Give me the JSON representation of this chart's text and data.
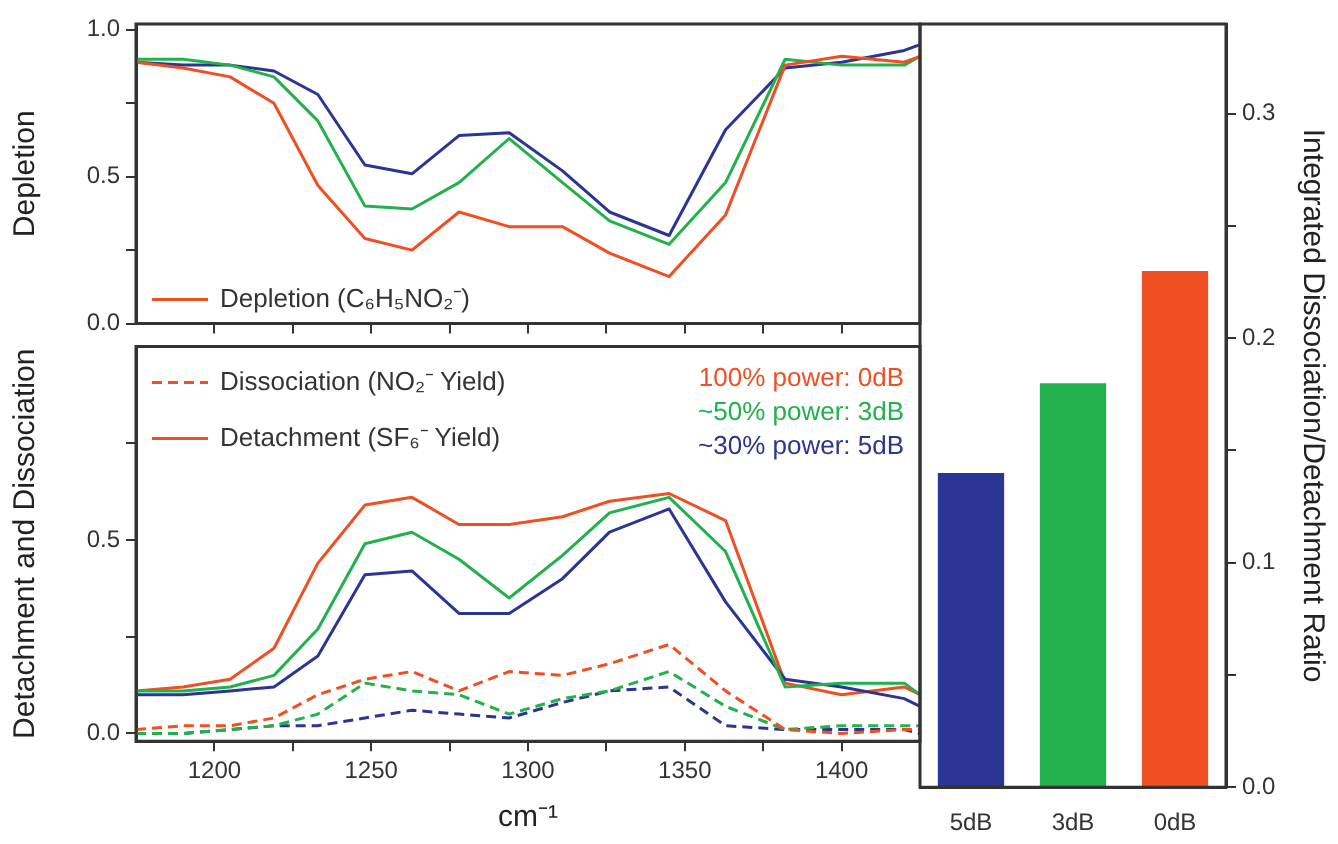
{
  "chart_data": [
    {
      "type": "line",
      "ylabel": "Depletion",
      "x": [
        1175,
        1190,
        1205,
        1219,
        1233,
        1248,
        1263,
        1278,
        1294,
        1311,
        1326,
        1345,
        1363,
        1382,
        1400,
        1420,
        1425
      ],
      "series": [
        {
          "name": "Depletion (C₆H₅NO₂⁻)",
          "color": "#f04e23",
          "values": [
            0.89,
            0.87,
            0.84,
            0.75,
            0.47,
            0.29,
            0.25,
            0.38,
            0.33,
            0.33,
            0.24,
            0.16,
            0.37,
            0.88,
            0.91,
            0.89,
            0.91
          ]
        },
        {
          "color": "#22b14c",
          "values": [
            0.9,
            0.9,
            0.88,
            0.84,
            0.69,
            0.4,
            0.39,
            0.48,
            0.63,
            0.48,
            0.35,
            0.27,
            0.48,
            0.9,
            0.88,
            0.88,
            0.91
          ]
        },
        {
          "color": "#2b3593",
          "values": [
            0.89,
            0.88,
            0.88,
            0.86,
            0.78,
            0.54,
            0.51,
            0.64,
            0.65,
            0.52,
            0.38,
            0.3,
            0.66,
            0.87,
            0.89,
            0.93,
            0.95
          ]
        }
      ],
      "xlim": [
        1175,
        1425
      ],
      "xticks": [
        {
          "value": 1200,
          "label": null
        },
        {
          "value": 1225,
          "label": null
        },
        {
          "value": 1250,
          "label": null
        },
        {
          "value": 1275,
          "label": null
        },
        {
          "value": 1300,
          "label": null
        },
        {
          "value": 1325,
          "label": null
        },
        {
          "value": 1350,
          "label": null
        },
        {
          "value": 1375,
          "label": null
        },
        {
          "value": 1400,
          "label": null
        }
      ],
      "ylim": [
        0,
        1.02
      ],
      "yticks": [
        {
          "value": 0,
          "label": "0.0"
        },
        {
          "value": 0.25,
          "label": null
        },
        {
          "value": 0.5,
          "label": "0.5"
        },
        {
          "value": 0.75,
          "label": null
        },
        {
          "value": 1,
          "label": "1.0"
        }
      ],
      "tick_labels": "y",
      "legend": "bottom left",
      "grid": false,
      "marker": "none",
      "line_style": "solid"
    },
    {
      "type": "line",
      "ylabel": "Detachment and Dissociation",
      "xlabel": "cm⁻¹",
      "x": [
        1175,
        1190,
        1205,
        1219,
        1233,
        1248,
        1263,
        1278,
        1294,
        1311,
        1326,
        1345,
        1363,
        1382,
        1400,
        1420,
        1425
      ],
      "series": [
        {
          "name": "Dissociation (NO₂⁻ Yield)",
          "color": "#f04e23",
          "line_style": "dashed",
          "values": [
            0.01,
            0.02,
            0.02,
            0.04,
            0.1,
            0.14,
            0.16,
            0.11,
            0.16,
            0.15,
            0.18,
            0.23,
            0.11,
            0.01,
            0.0,
            0.01,
            0.01
          ]
        },
        {
          "color": "#22b14c",
          "line_style": "solid",
          "values": [
            0.11,
            0.11,
            0.12,
            0.15,
            0.27,
            0.49,
            0.52,
            0.45,
            0.35,
            0.46,
            0.57,
            0.61,
            0.47,
            0.12,
            0.13,
            0.13,
            0.1
          ]
        },
        {
          "color": "#2b3593",
          "line_style": "solid",
          "values": [
            0.1,
            0.1,
            0.11,
            0.12,
            0.2,
            0.41,
            0.42,
            0.31,
            0.31,
            0.4,
            0.52,
            0.58,
            0.34,
            0.14,
            0.12,
            0.09,
            0.07
          ]
        },
        {
          "name": "Detachment (SF₆⁻ Yield)",
          "color": "#f04e23",
          "line_style": "solid",
          "values": [
            0.11,
            0.12,
            0.14,
            0.22,
            0.44,
            0.59,
            0.61,
            0.54,
            0.54,
            0.56,
            0.6,
            0.62,
            0.55,
            0.13,
            0.1,
            0.12,
            0.1
          ]
        },
        {
          "color": "#22b14c",
          "line_style": "dashed",
          "values": [
            0.0,
            0.0,
            0.01,
            0.02,
            0.05,
            0.13,
            0.11,
            0.1,
            0.05,
            0.09,
            0.11,
            0.16,
            0.07,
            0.01,
            0.02,
            0.02,
            0.02
          ]
        },
        {
          "color": "#2b3593",
          "line_style": "dashed",
          "values": [
            0.0,
            0.0,
            0.01,
            0.02,
            0.02,
            0.04,
            0.06,
            0.05,
            0.04,
            0.08,
            0.11,
            0.12,
            0.02,
            0.01,
            0.01,
            0.01,
            0.0
          ]
        }
      ],
      "xlim": [
        1175,
        1425
      ],
      "xticks": [
        1200,
        {
          "value": 1225,
          "label": null
        },
        1250,
        {
          "value": 1275,
          "label": null
        },
        1300,
        {
          "value": 1325,
          "label": null
        },
        1350,
        {
          "value": 1375,
          "label": null
        },
        1400
      ],
      "ylim": [
        -0.02,
        1.0
      ],
      "yticks": [
        {
          "value": 0,
          "label": "0.0"
        },
        {
          "value": 0.25,
          "label": null
        },
        {
          "value": 0.5,
          "label": "0.5"
        },
        {
          "value": 0.75,
          "label": null
        }
      ],
      "annotations": [
        "100% power: 0dB",
        "~50% power: 3dB",
        "~30% power: 5dB"
      ],
      "legend": "top left",
      "grid": false,
      "marker": "none"
    },
    {
      "type": "bar",
      "ylabel": "Integrated Dissociation/Detachment Ratio",
      "categories": [
        "5dB",
        "3dB",
        "0dB"
      ],
      "values": [
        0.14,
        0.18,
        0.23
      ],
      "colors": [
        "#2b3593",
        "#22b14c",
        "#f04e23"
      ],
      "ylim": [
        0,
        0.34
      ],
      "yticks": [
        {
          "value": 0,
          "label": "0.0"
        },
        {
          "value": 0.05,
          "label": null
        },
        {
          "value": 0.1,
          "label": "0.1"
        },
        {
          "value": 0.15,
          "label": null
        },
        {
          "value": 0.2,
          "label": "0.2"
        },
        {
          "value": 0.25,
          "label": null
        },
        {
          "value": 0.3,
          "label": "0.3"
        }
      ],
      "grid": false,
      "legend": false
    }
  ]
}
